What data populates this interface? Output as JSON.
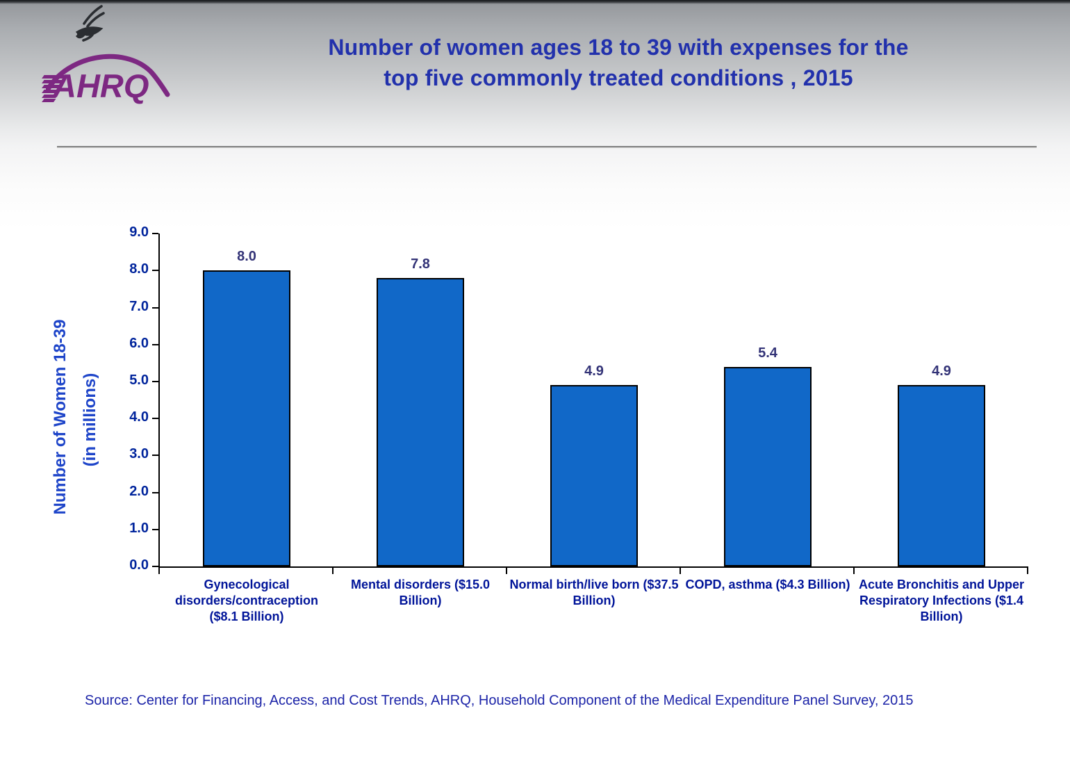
{
  "slide": {
    "title_line1": "Number of women ages 18 to 39 with expenses for the",
    "title_line2": "top five commonly treated conditions , 2015",
    "source": "Source: Center for Financing, Access, and Cost Trends, AHRQ, Household Component of the Medical Expenditure Panel Survey, 2015"
  },
  "logo": {
    "text": "AHRQ",
    "eagle_icon": "hhs-eagle-icon",
    "brand_color": "#7d2882"
  },
  "chart_data": {
    "type": "bar",
    "title": "Number of women ages 18 to 39 with expenses for the top five commonly treated conditions , 2015",
    "categories": [
      "Gynecological disorders/contraception ($8.1 Billion)",
      "Mental disorders ($15.0 Billion)",
      "Normal birth/live born ($37.5 Billion)",
      "COPD, asthma ($4.3 Billion)",
      "Acute Bronchitis and Upper Respiratory Infections ($1.4 Billion)"
    ],
    "values": [
      8.0,
      7.8,
      4.9,
      5.4,
      4.9
    ],
    "value_labels": [
      "8.0",
      "7.8",
      "4.9",
      "5.4",
      "4.9"
    ],
    "xlabel": "",
    "ylabel_line1": "Number of Women 18-39",
    "ylabel_line2": "(in millions)",
    "ylim": [
      0.0,
      9.0
    ],
    "yticks": [
      "0.0",
      "1.0",
      "2.0",
      "3.0",
      "4.0",
      "5.0",
      "6.0",
      "7.0",
      "8.0",
      "9.0"
    ],
    "grid": false,
    "legend": "none",
    "bar_color": "#1168c8",
    "bar_border_color": "#000000",
    "value_label_color": "#333377",
    "tick_label_color": "#00249c",
    "category_label_color": "#001499"
  }
}
